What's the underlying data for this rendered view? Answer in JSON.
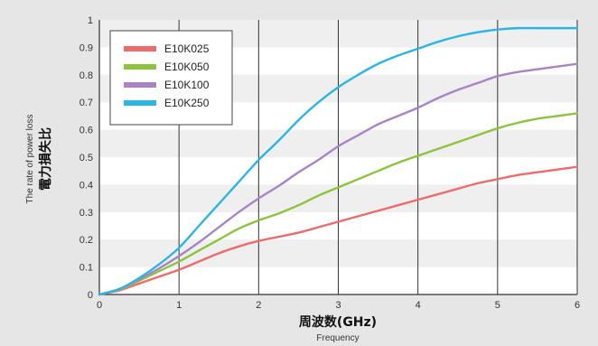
{
  "chart_data": {
    "type": "line",
    "ylabel": "電力損失比",
    "ylabel_en": "The rate of power loss",
    "xlabel": "周波数(GHz)",
    "xlabel_en": "Frequency",
    "xlim": [
      0,
      6
    ],
    "ylim": [
      0,
      1
    ],
    "x_ticks": [
      "0",
      "1",
      "2",
      "3",
      "4",
      "5",
      "6"
    ],
    "y_ticks": [
      "0",
      "0.1",
      "0.2",
      "0.3",
      "0.4",
      "0.5",
      "0.6",
      "0.7",
      "0.8",
      "0.9",
      "1"
    ],
    "grid": "vertical lines at each x tick, alternating horizontal bands",
    "legend_position": "top-left",
    "x": [
      0,
      0.25,
      0.5,
      0.75,
      1.0,
      1.25,
      1.5,
      1.75,
      2.0,
      2.25,
      2.5,
      2.75,
      3.0,
      3.25,
      3.5,
      3.75,
      4.0,
      4.25,
      4.5,
      4.75,
      5.0,
      5.25,
      5.5,
      5.75,
      6.0
    ],
    "series": [
      {
        "name": "E10K025",
        "color": "#ee6b6b",
        "values": [
          0.0,
          0.015,
          0.04,
          0.065,
          0.09,
          0.12,
          0.15,
          0.175,
          0.195,
          0.21,
          0.225,
          0.245,
          0.265,
          0.285,
          0.305,
          0.325,
          0.345,
          0.365,
          0.385,
          0.405,
          0.42,
          0.435,
          0.445,
          0.455,
          0.465
        ]
      },
      {
        "name": "E10K050",
        "color": "#8cc43c",
        "values": [
          0.0,
          0.018,
          0.05,
          0.085,
          0.12,
          0.16,
          0.2,
          0.24,
          0.27,
          0.295,
          0.325,
          0.36,
          0.39,
          0.42,
          0.45,
          0.48,
          0.505,
          0.53,
          0.555,
          0.58,
          0.605,
          0.625,
          0.64,
          0.65,
          0.66
        ]
      },
      {
        "name": "E10K100",
        "color": "#a884c6",
        "values": [
          0.0,
          0.02,
          0.055,
          0.095,
          0.14,
          0.19,
          0.245,
          0.3,
          0.35,
          0.395,
          0.445,
          0.49,
          0.54,
          0.58,
          0.62,
          0.65,
          0.68,
          0.715,
          0.745,
          0.77,
          0.795,
          0.81,
          0.82,
          0.83,
          0.84
        ]
      },
      {
        "name": "E10K250",
        "color": "#29b6e6",
        "values": [
          0.0,
          0.02,
          0.06,
          0.11,
          0.17,
          0.25,
          0.33,
          0.41,
          0.49,
          0.56,
          0.635,
          0.7,
          0.755,
          0.8,
          0.84,
          0.87,
          0.895,
          0.92,
          0.94,
          0.955,
          0.965,
          0.97,
          0.97,
          0.97,
          0.97
        ]
      }
    ]
  }
}
